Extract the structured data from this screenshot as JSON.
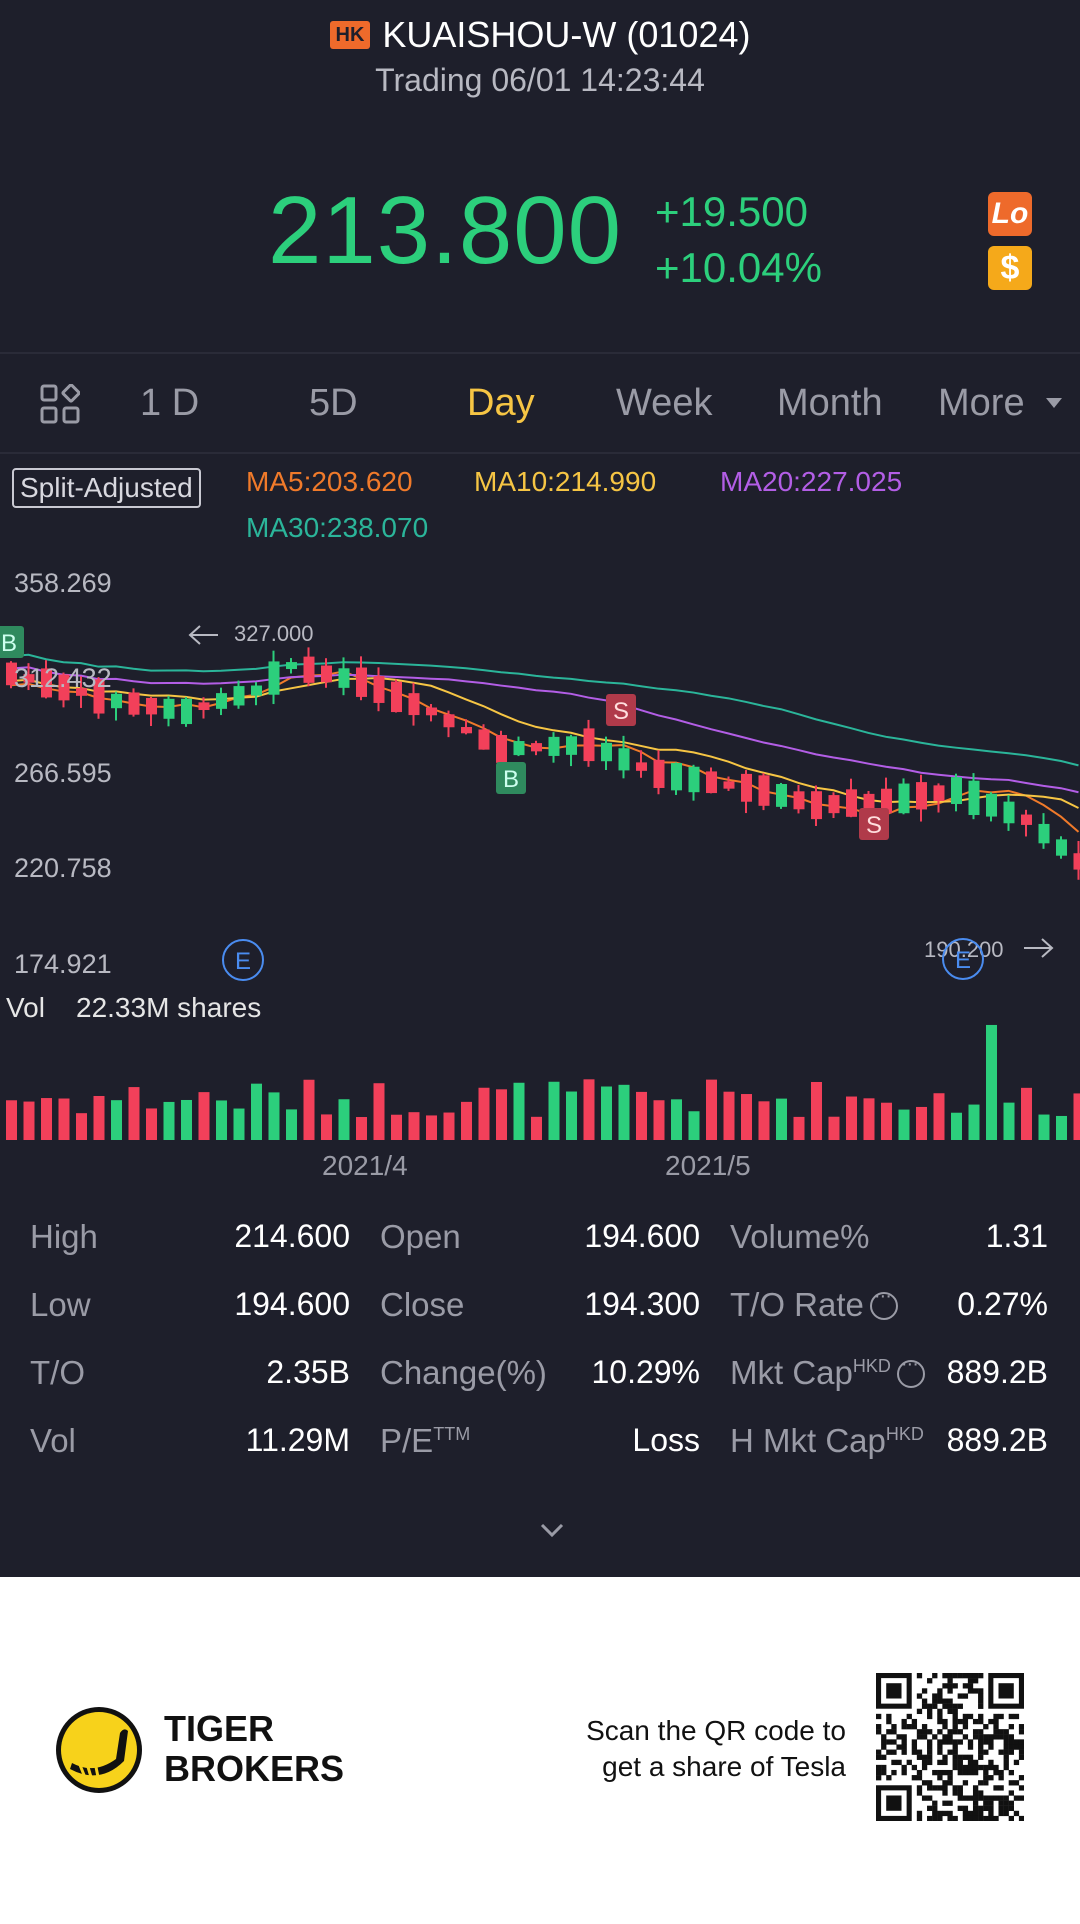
{
  "header": {
    "market_badge": "HK",
    "title": "KUAISHOU-W (01024)",
    "subtitle": "Trading 06/01 14:23:44",
    "price": "213.800",
    "change": "+19.500",
    "change_pct": "+10.04%",
    "badge_lo": "Lo",
    "badge_dollar": "$"
  },
  "tabs": [
    "1 D",
    "5D",
    "Day",
    "Week",
    "Month",
    "More"
  ],
  "active_tab": "Day",
  "indicators": {
    "split": "Split-Adjusted",
    "ma5": "MA5:203.620",
    "ma10": "MA10:214.990",
    "ma20": "MA20:227.025",
    "ma30": "MA30:238.070"
  },
  "chart_data": {
    "type": "candlestick",
    "y_ticks": [
      "358.269",
      "312.432",
      "266.595",
      "220.758",
      "174.921"
    ],
    "ylim": [
      174.921,
      358.269
    ],
    "high_marker": "327.000",
    "low_marker": "190.200",
    "event_markers": [
      "E",
      "E"
    ],
    "trade_markers": [
      "B",
      "S",
      "B",
      "S"
    ],
    "x_labels": [
      "2021/4",
      "2021/5"
    ],
    "volume_label": "Vol",
    "volume_value": "22.33M shares",
    "colors": {
      "up": "#2ccf7c",
      "down": "#f2405a",
      "ma5": "#f07a2a",
      "ma10": "#f6c544",
      "ma20": "#b35ee6",
      "ma30": "#2bb59a"
    }
  },
  "stats": {
    "high_label": "High",
    "high": "214.600",
    "low_label": "Low",
    "low": "194.600",
    "to_label": "T/O",
    "to": "2.35B",
    "vol_label": "Vol",
    "vol": "11.29M",
    "open_label": "Open",
    "open": "194.600",
    "close_label": "Close",
    "close": "194.300",
    "changepct_label": "Change(%)",
    "changepct": "10.29%",
    "pe_label": "P/E",
    "pe_sup": "TTM",
    "pe": "Loss",
    "volpct_label": "Volume%",
    "volpct": "1.31",
    "torate_label": "T/O Rate",
    "torate": "0.27%",
    "mktcap_label": "Mkt Cap",
    "mktcap_sup": "HKD",
    "mktcap": "889.2B",
    "hmktcap_label": "H Mkt Cap",
    "hmktcap_sup": "HKD",
    "hmktcap": "889.2B"
  },
  "footer": {
    "brand_line1": "TIGER",
    "brand_line2": "BROKERS",
    "scan_line1": "Scan the QR code to",
    "scan_line2": "get a share of Tesla"
  }
}
